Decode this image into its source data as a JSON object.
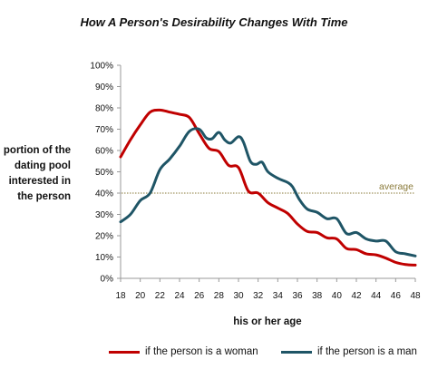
{
  "chart_data": {
    "type": "line",
    "title": "How A Person's Desirability Changes  With Time",
    "xlabel": "his or her age",
    "ylabel_lines": [
      "portion of the",
      "dating pool",
      "interested in",
      "the person"
    ],
    "x_range": [
      18,
      48
    ],
    "x_ticks": [
      18,
      20,
      22,
      24,
      26,
      28,
      30,
      32,
      34,
      36,
      38,
      40,
      42,
      44,
      46,
      48
    ],
    "y_range": [
      0,
      100
    ],
    "y_ticks": [
      0,
      10,
      20,
      30,
      40,
      50,
      60,
      70,
      80,
      90,
      100
    ],
    "y_tick_suffix": "%",
    "grid": false,
    "legend_position": "bottom",
    "reference_line": {
      "label": "average",
      "value": 40,
      "color": "#8a7a3a"
    },
    "series": [
      {
        "name": "if the person is a woman",
        "color": "#c00000",
        "points": [
          [
            18,
            57
          ],
          [
            19,
            65
          ],
          [
            20,
            72
          ],
          [
            21,
            78
          ],
          [
            22,
            79
          ],
          [
            23,
            78
          ],
          [
            24,
            77
          ],
          [
            25,
            75.5
          ],
          [
            26,
            68
          ],
          [
            27,
            61
          ],
          [
            28,
            59.5
          ],
          [
            29,
            53
          ],
          [
            30,
            52
          ],
          [
            31,
            41
          ],
          [
            32,
            40
          ],
          [
            33,
            35.5
          ],
          [
            34,
            33
          ],
          [
            35,
            30.5
          ],
          [
            36,
            25.5
          ],
          [
            37,
            22
          ],
          [
            38,
            21.5
          ],
          [
            39,
            19
          ],
          [
            40,
            18.5
          ],
          [
            41,
            14
          ],
          [
            42,
            13.5
          ],
          [
            43,
            11.5
          ],
          [
            44,
            11
          ],
          [
            45,
            9.5
          ],
          [
            46,
            7.5
          ],
          [
            47,
            6.5
          ],
          [
            48,
            6.2
          ]
        ]
      },
      {
        "name": "if the person is a man",
        "color": "#1f5566",
        "points": [
          [
            18,
            26.5
          ],
          [
            19,
            30
          ],
          [
            20,
            36.5
          ],
          [
            21,
            40
          ],
          [
            22,
            51
          ],
          [
            23,
            56
          ],
          [
            24,
            62
          ],
          [
            25,
            69
          ],
          [
            26,
            70
          ],
          [
            26.7,
            66
          ],
          [
            27.3,
            65.5
          ],
          [
            28,
            68.5
          ],
          [
            28.6,
            65
          ],
          [
            29.2,
            63.5
          ],
          [
            30,
            66.5
          ],
          [
            30.5,
            64
          ],
          [
            31.2,
            55
          ],
          [
            31.8,
            53.5
          ],
          [
            32.4,
            54.5
          ],
          [
            33,
            50
          ],
          [
            34,
            47
          ],
          [
            35,
            45
          ],
          [
            35.5,
            43
          ],
          [
            36.2,
            37
          ],
          [
            37,
            32.5
          ],
          [
            38,
            31
          ],
          [
            39,
            28
          ],
          [
            40,
            28
          ],
          [
            41,
            21
          ],
          [
            42,
            21.5
          ],
          [
            43,
            18.5
          ],
          [
            44,
            17.5
          ],
          [
            45,
            17.5
          ],
          [
            46,
            12.5
          ],
          [
            47,
            11.5
          ],
          [
            48,
            10.5
          ]
        ]
      }
    ]
  }
}
